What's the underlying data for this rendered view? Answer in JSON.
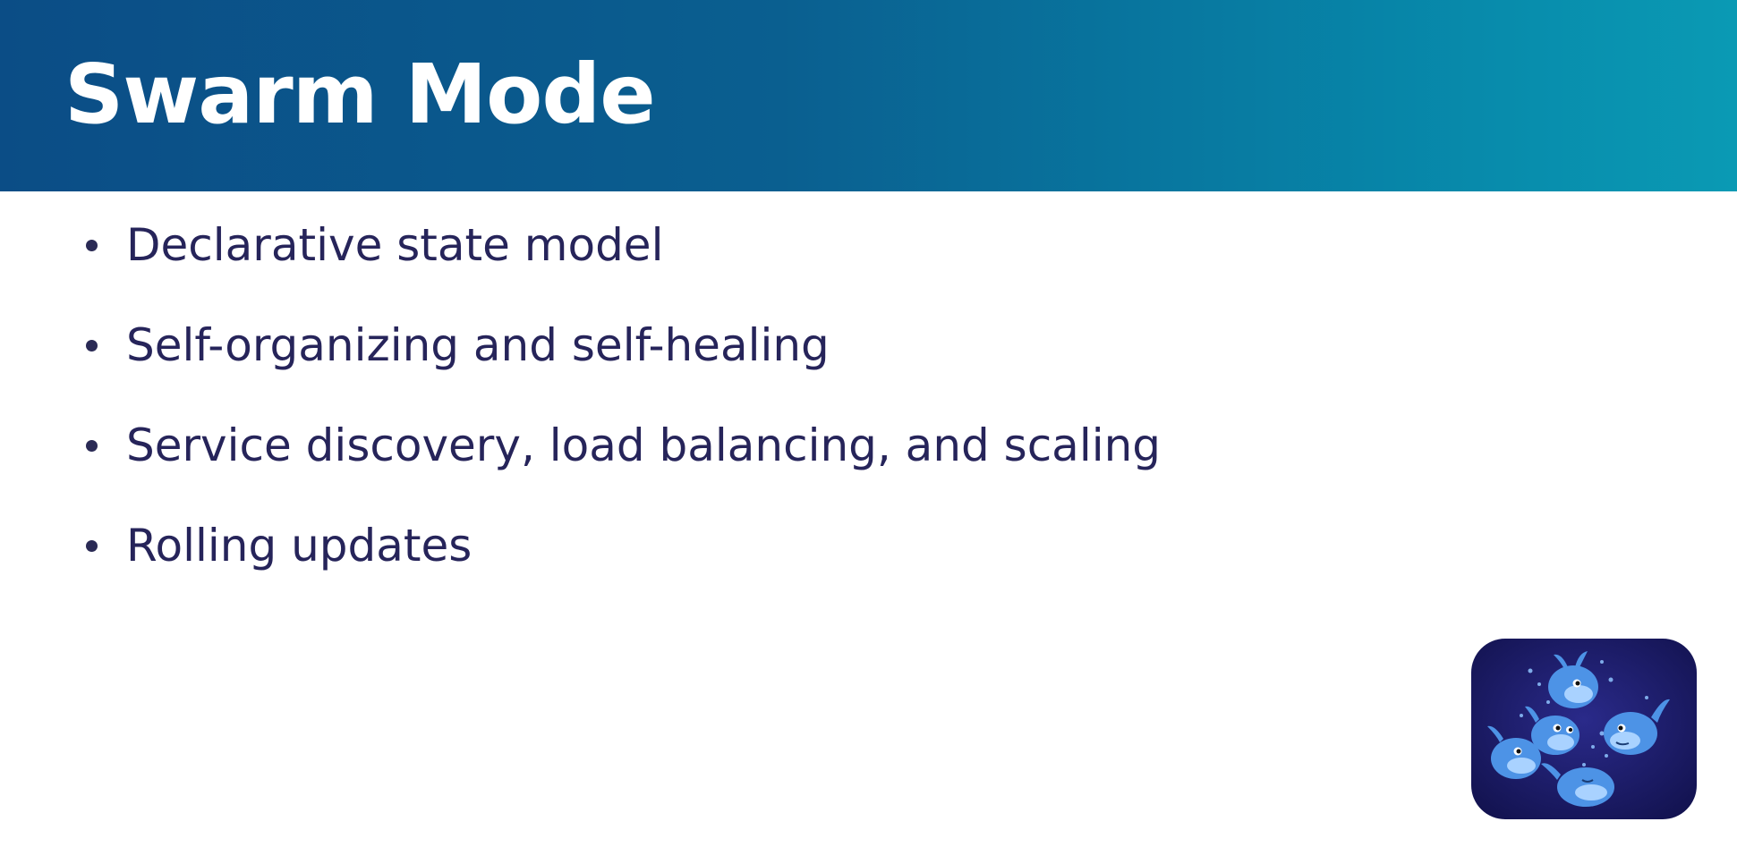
{
  "slide": {
    "title": "Swarm Mode",
    "bullets": [
      "Declarative state model",
      "Self-organizing and self-healing",
      "Service discovery, load balancing, and scaling",
      "Rolling updates"
    ],
    "logo_icon": "docker-whale-swarm-icon"
  },
  "colors": {
    "header_start": "#0b4d86",
    "header_end": "#0a9ab4",
    "title_text": "#ffffff",
    "body_text": "#26245a",
    "logo_bg": "#1c1b6b",
    "whale": "#4a90e2"
  }
}
